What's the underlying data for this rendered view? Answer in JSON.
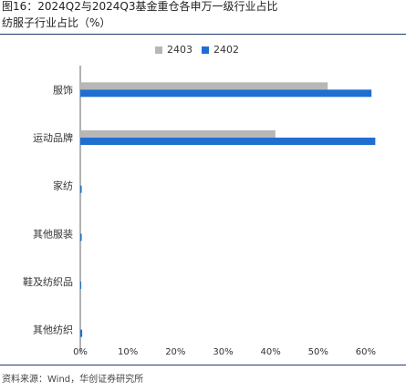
{
  "header": {
    "title": "图16：2024Q2与2024Q3基金重仓各申万一级行业占比",
    "subtitle": "纺服子行业占比（%）"
  },
  "source": "资料来源：Wind，华创证券研究所",
  "colors": {
    "series_2403": "#b7b7b7",
    "series_2402": "#1f6fd1",
    "rule": "#1f3b6e"
  },
  "chart_data": {
    "type": "bar",
    "orientation": "horizontal",
    "categories": [
      "服饰",
      "运动品牌",
      "家纺",
      "其他服装",
      "鞋及纺织品",
      "其他纺织"
    ],
    "series": [
      {
        "name": "2403",
        "values": [
          52.0,
          41.0,
          0,
          0,
          0,
          0
        ]
      },
      {
        "name": "2402",
        "values": [
          61.2,
          62.0,
          0.3,
          0.3,
          0.2,
          0.4
        ]
      }
    ],
    "x_ticks": [
      "0%",
      "10%",
      "20%",
      "30%",
      "40%",
      "50%",
      "60%"
    ],
    "xlim": [
      0,
      65
    ],
    "legend_position": "top"
  }
}
